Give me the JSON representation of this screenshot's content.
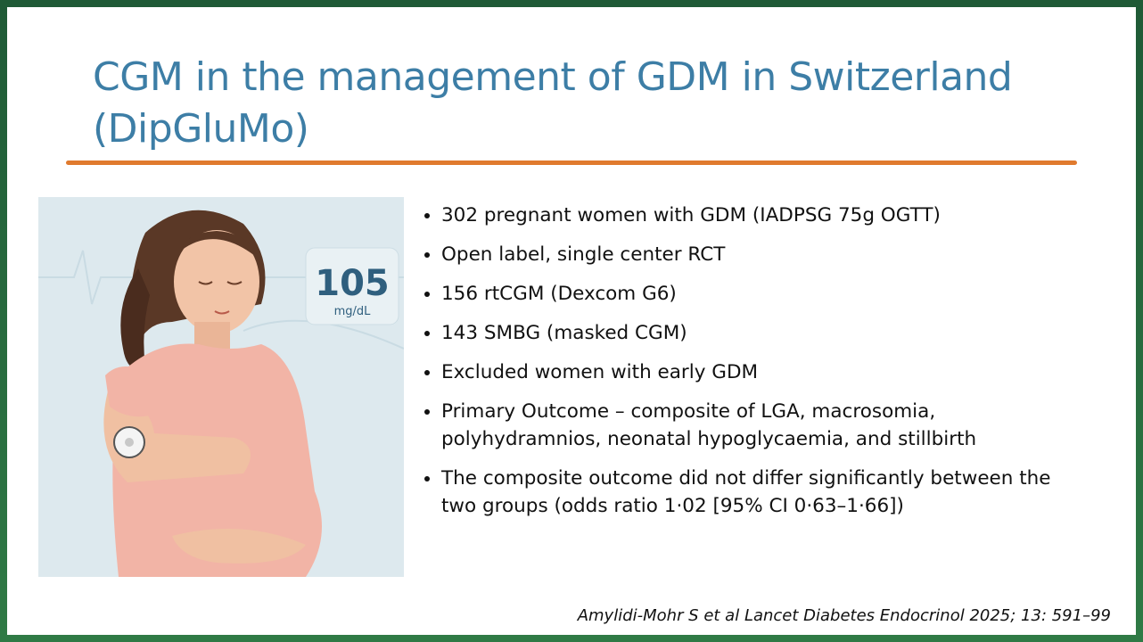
{
  "slide": {
    "title": "CGM in the management of GDM in Switzerland (DipGluMo)",
    "illustration": {
      "reading": "105",
      "unit": "mg/dL"
    },
    "bullets": [
      "302 pregnant women with GDM (IADPSG 75g OGTT)",
      "Open label, single center RCT",
      "156 rtCGM (Dexcom G6)",
      "143 SMBG (masked CGM)",
      "Excluded women with early GDM",
      "Primary Outcome – composite of LGA, macrosomia, polyhydramnios, neonatal hypoglycaemia, and stillbirth",
      "The composite outcome did not differ significantly between the two groups (odds ratio 1·02 [95% CI 0·63–1·66])"
    ],
    "citation": "Amylidi-Mohr S et al  Lancet Diabetes Endocrinol 2025; 13: 591–99"
  }
}
